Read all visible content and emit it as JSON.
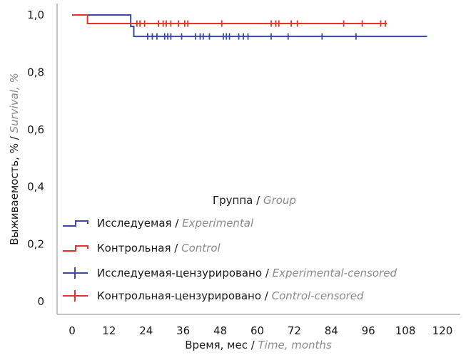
{
  "chart_data": {
    "type": "line",
    "title": "",
    "xlabel": {
      "ru": "Время, мес",
      "en": "Time, months"
    },
    "ylabel": {
      "ru": "Выживаемость, %",
      "en": "Survival, %"
    },
    "x_ticks": [
      0,
      12,
      24,
      36,
      48,
      60,
      72,
      84,
      96,
      108,
      120
    ],
    "y_ticks": [
      {
        "value": 0.0,
        "label": "0"
      },
      {
        "value": 0.2,
        "label": "0,2"
      },
      {
        "value": 0.4,
        "label": "0,4"
      },
      {
        "value": 0.6,
        "label": "0,6"
      },
      {
        "value": 0.8,
        "label": "0,8"
      },
      {
        "value": 1.0,
        "label": "1,0"
      }
    ],
    "xlim": [
      0,
      120
    ],
    "ylim": [
      0,
      1.0
    ],
    "grid": false,
    "legend": {
      "title": {
        "ru": "Группа",
        "en": "Group"
      },
      "placement": "bottom-left",
      "entries": [
        {
          "key": "experimental",
          "ru": "Исследуемая",
          "en": "Experimental",
          "kind": "step"
        },
        {
          "key": "control",
          "ru": "Контрольная",
          "en": "Control",
          "kind": "step"
        },
        {
          "key": "experimental_censored",
          "ru": "Исследуемая-цензурировано",
          "en": "Experimental-censored",
          "kind": "censor"
        },
        {
          "key": "control_censored",
          "ru": "Контрольная-цензурировано",
          "en": "Control-censored",
          "kind": "censor"
        }
      ]
    },
    "series": [
      {
        "key": "experimental",
        "color": "#3b4aa6",
        "steps": [
          {
            "x": 0,
            "y": 1.0
          },
          {
            "x": 19,
            "y": 0.96
          },
          {
            "x": 20,
            "y": 0.925
          },
          {
            "x": 115,
            "y": 0.925
          }
        ],
        "censored": [
          24.5,
          26,
          27.5,
          30,
          31,
          32,
          35.5,
          40,
          41.5,
          42.5,
          44.5,
          49,
          50,
          51,
          54,
          55.5,
          57,
          64.5,
          70,
          81,
          92
        ]
      },
      {
        "key": "control",
        "color": "#e4322b",
        "steps": [
          {
            "x": 0,
            "y": 1.0
          },
          {
            "x": 5,
            "y": 0.97
          },
          {
            "x": 102,
            "y": 0.97
          }
        ],
        "censored": [
          21,
          22,
          23.5,
          28,
          29.5,
          30.5,
          32,
          34.5,
          36.5,
          37.5,
          48.5,
          64.5,
          66,
          67,
          71,
          73,
          88,
          94,
          100,
          101.5
        ]
      }
    ]
  }
}
